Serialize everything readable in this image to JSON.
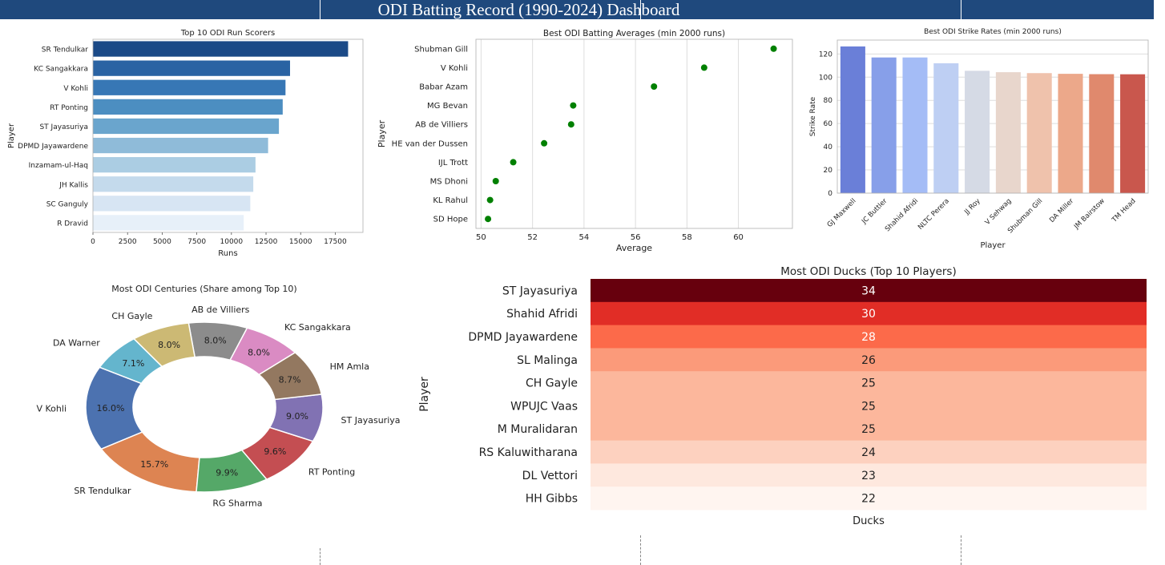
{
  "dashboard": {
    "title": "ODI Batting Record (1990-2024) Dashboard"
  },
  "chart_data": [
    {
      "id": "runs",
      "type": "bar",
      "orientation": "horizontal",
      "title": "Top 10 ODI Run Scorers",
      "xlabel": "Runs",
      "ylabel": "Player",
      "categories": [
        "SR Tendulkar",
        "KC Sangakkara",
        "V Kohli",
        "RT Ponting",
        "ST Jayasuriya",
        "DPMD Jayawardene",
        "Inzamam-ul-Haq",
        "JH Kallis",
        "SC Ganguly",
        "R Dravid"
      ],
      "values": [
        18426,
        14234,
        13906,
        13704,
        13430,
        12650,
        11739,
        11579,
        11363,
        10889
      ],
      "xlim": [
        0,
        19500
      ],
      "xticks": [
        0,
        2500,
        5000,
        7500,
        10000,
        12500,
        15000,
        17500
      ],
      "colors": [
        "#1b4a87",
        "#2a63a3",
        "#3777b5",
        "#4c8ec1",
        "#6aa5cd",
        "#8fbbd9",
        "#abcde3",
        "#c4daec",
        "#d7e5f3",
        "#e7f0f9"
      ]
    },
    {
      "id": "averages",
      "type": "scatter",
      "title": "Best ODI Batting Averages (min 2000 runs)",
      "xlabel": "Average",
      "ylabel": "Player",
      "categories": [
        "Shubman Gill",
        "V Kohli",
        "Babar Azam",
        "MG Bevan",
        "AB de Villiers",
        "HE van der Dussen",
        "IJL Trott",
        "MS Dhoni",
        "KL Rahul",
        "SD Hope"
      ],
      "values": [
        61.37,
        58.67,
        56.72,
        53.58,
        53.5,
        52.45,
        51.25,
        50.57,
        50.35,
        50.27
      ],
      "xlim": [
        49.8,
        62.1
      ],
      "xticks": [
        50,
        52,
        54,
        56,
        58,
        60
      ],
      "grid": true,
      "color": "#008000"
    },
    {
      "id": "strike",
      "type": "bar",
      "title": "Best ODI Strike Rates (min 2000 runs)",
      "xlabel": "Player",
      "ylabel": "Strike Rate",
      "categories": [
        "GJ Maxwell",
        "JC Buttler",
        "Shahid Afridi",
        "NLTC Perera",
        "JJ Roy",
        "V Sehwag",
        "Shubman Gill",
        "DA Miller",
        "JM Bairstow",
        "TM Head"
      ],
      "values": [
        126.5,
        117.0,
        117.0,
        112.0,
        105.5,
        104.3,
        103.5,
        102.9,
        102.6,
        102.5
      ],
      "ylim": [
        0,
        132
      ],
      "yticks": [
        0,
        20,
        40,
        60,
        80,
        100,
        120
      ],
      "grid": true,
      "colors": [
        "#6a7fd8",
        "#879fe9",
        "#a4bcf6",
        "#becff3",
        "#d5dae5",
        "#e8d6cc",
        "#efc2ac",
        "#eca88a",
        "#e0896d",
        "#c9574d"
      ]
    },
    {
      "id": "centuries",
      "type": "pie",
      "donut": true,
      "title": "Most ODI Centuries (Share among Top 10)",
      "labels": [
        "V Kohli",
        "SR Tendulkar",
        "RG Sharma",
        "RT Ponting",
        "ST Jayasuriya",
        "HM Amla",
        "KC Sangakkara",
        "AB de Villiers",
        "CH Gayle",
        "DA Warner"
      ],
      "values": [
        16.0,
        15.7,
        9.9,
        9.6,
        9.0,
        8.7,
        8.0,
        8.0,
        8.0,
        7.1
      ],
      "value_labels": [
        "16.0%",
        "15.7%",
        "9.9%",
        "9.6%",
        "9.0%",
        "8.7%",
        "8.0%",
        "8.0%",
        "8.0%",
        "7.1%"
      ],
      "colors": [
        "#4c72b0",
        "#dd8452",
        "#55a868",
        "#c44e52",
        "#8172b3",
        "#937860",
        "#da8bc3",
        "#8c8c8c",
        "#ccb974",
        "#64b5cd"
      ]
    },
    {
      "id": "ducks",
      "type": "heatmap",
      "title": "Most ODI Ducks (Top 10 Players)",
      "xlabel": "Ducks",
      "ylabel": "Player",
      "categories": [
        "ST Jayasuriya",
        "Shahid Afridi",
        "DPMD Jayawardene",
        "SL Malinga",
        "CH Gayle",
        "WPUJC Vaas",
        "M Muralidaran",
        "RS Kaluwitharana",
        "DL Vettori",
        "HH Gibbs"
      ],
      "values": [
        34,
        30,
        28,
        26,
        25,
        25,
        25,
        24,
        23,
        22
      ],
      "value_labels": [
        "34",
        "30",
        "28",
        "26",
        "25",
        "25",
        "25",
        "24",
        "23",
        "22"
      ],
      "colors": [
        "#67000d",
        "#e12d26",
        "#fc6a4a",
        "#fb9a7a",
        "#fcb79c",
        "#fcb79c",
        "#fcb79c",
        "#fdd1bf",
        "#fee8de",
        "#fff5f0"
      ]
    }
  ]
}
